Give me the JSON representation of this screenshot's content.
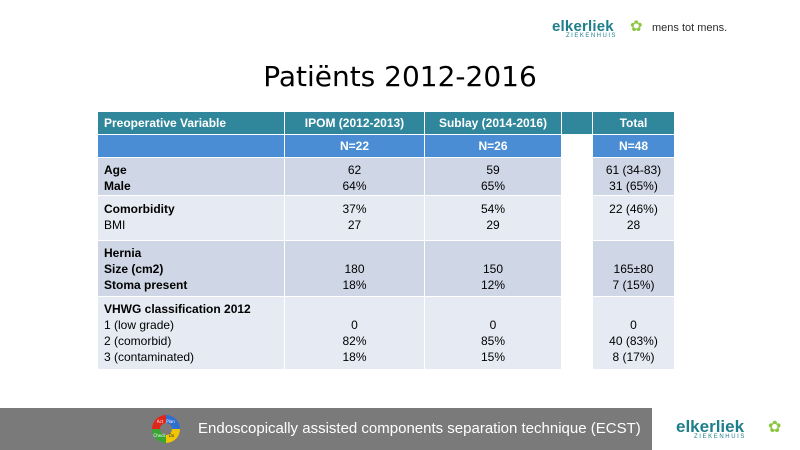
{
  "header": {
    "logo_word": "elkerliek",
    "logo_sub": "ZIEKENHUIS",
    "tagline": "mens tot mens."
  },
  "title": "Patiënts 2012-2016",
  "table": {
    "headers": [
      "Preoperative Variable",
      "IPOM (2012-2013)",
      "Sublay (2014-2016)",
      "",
      "Total"
    ],
    "n_row": [
      "",
      "N=22",
      "N=26",
      "",
      "N=48"
    ],
    "groups": [
      {
        "labels": [
          "Age",
          "Male"
        ],
        "ipom": [
          "62",
          "64%"
        ],
        "sublay": [
          "59",
          "65%"
        ],
        "total": [
          "61 (34-83)",
          "31 (65%)"
        ]
      },
      {
        "labels": [
          "Comorbidity",
          "BMI"
        ],
        "ipom": [
          "37%",
          "27"
        ],
        "sublay": [
          "54%",
          "29"
        ],
        "total": [
          "22 (46%)",
          "28"
        ]
      },
      {
        "labels": [
          "Hernia",
          "Size (cm2)",
          "Stoma present"
        ],
        "ipom": [
          "",
          "180",
          "18%"
        ],
        "sublay": [
          "",
          "150",
          "12%"
        ],
        "total": [
          "",
          "165±80",
          "7 (15%)"
        ]
      },
      {
        "labels": [
          "VHWG classification 2012",
          "1 (low grade)",
          "2 (comorbid)",
          "3 (contaminated)"
        ],
        "ipom": [
          "",
          "0",
          "82%",
          "18%"
        ],
        "sublay": [
          "",
          "0",
          "85%",
          "15%"
        ],
        "total": [
          "",
          "0",
          "40 (83%)",
          "8 (17%)"
        ]
      }
    ]
  },
  "footer": {
    "text": "Endoscopically assisted components separation technique (ECST)",
    "icon_labels": [
      "Plan",
      "Do",
      "Check",
      "Act"
    ],
    "logo_word": "elkerliek",
    "logo_sub": "ZIEKENHUIS"
  },
  "colors": {
    "header_bg": "#30879c",
    "n_row_bg": "#4a8dd4",
    "body_bg": "#cfd7e6",
    "body_alt_bg": "#e6eaf2",
    "footer_bg": "#7a7a7a",
    "brand": "#1e7e8c",
    "brand_accent": "#8dc63f"
  }
}
